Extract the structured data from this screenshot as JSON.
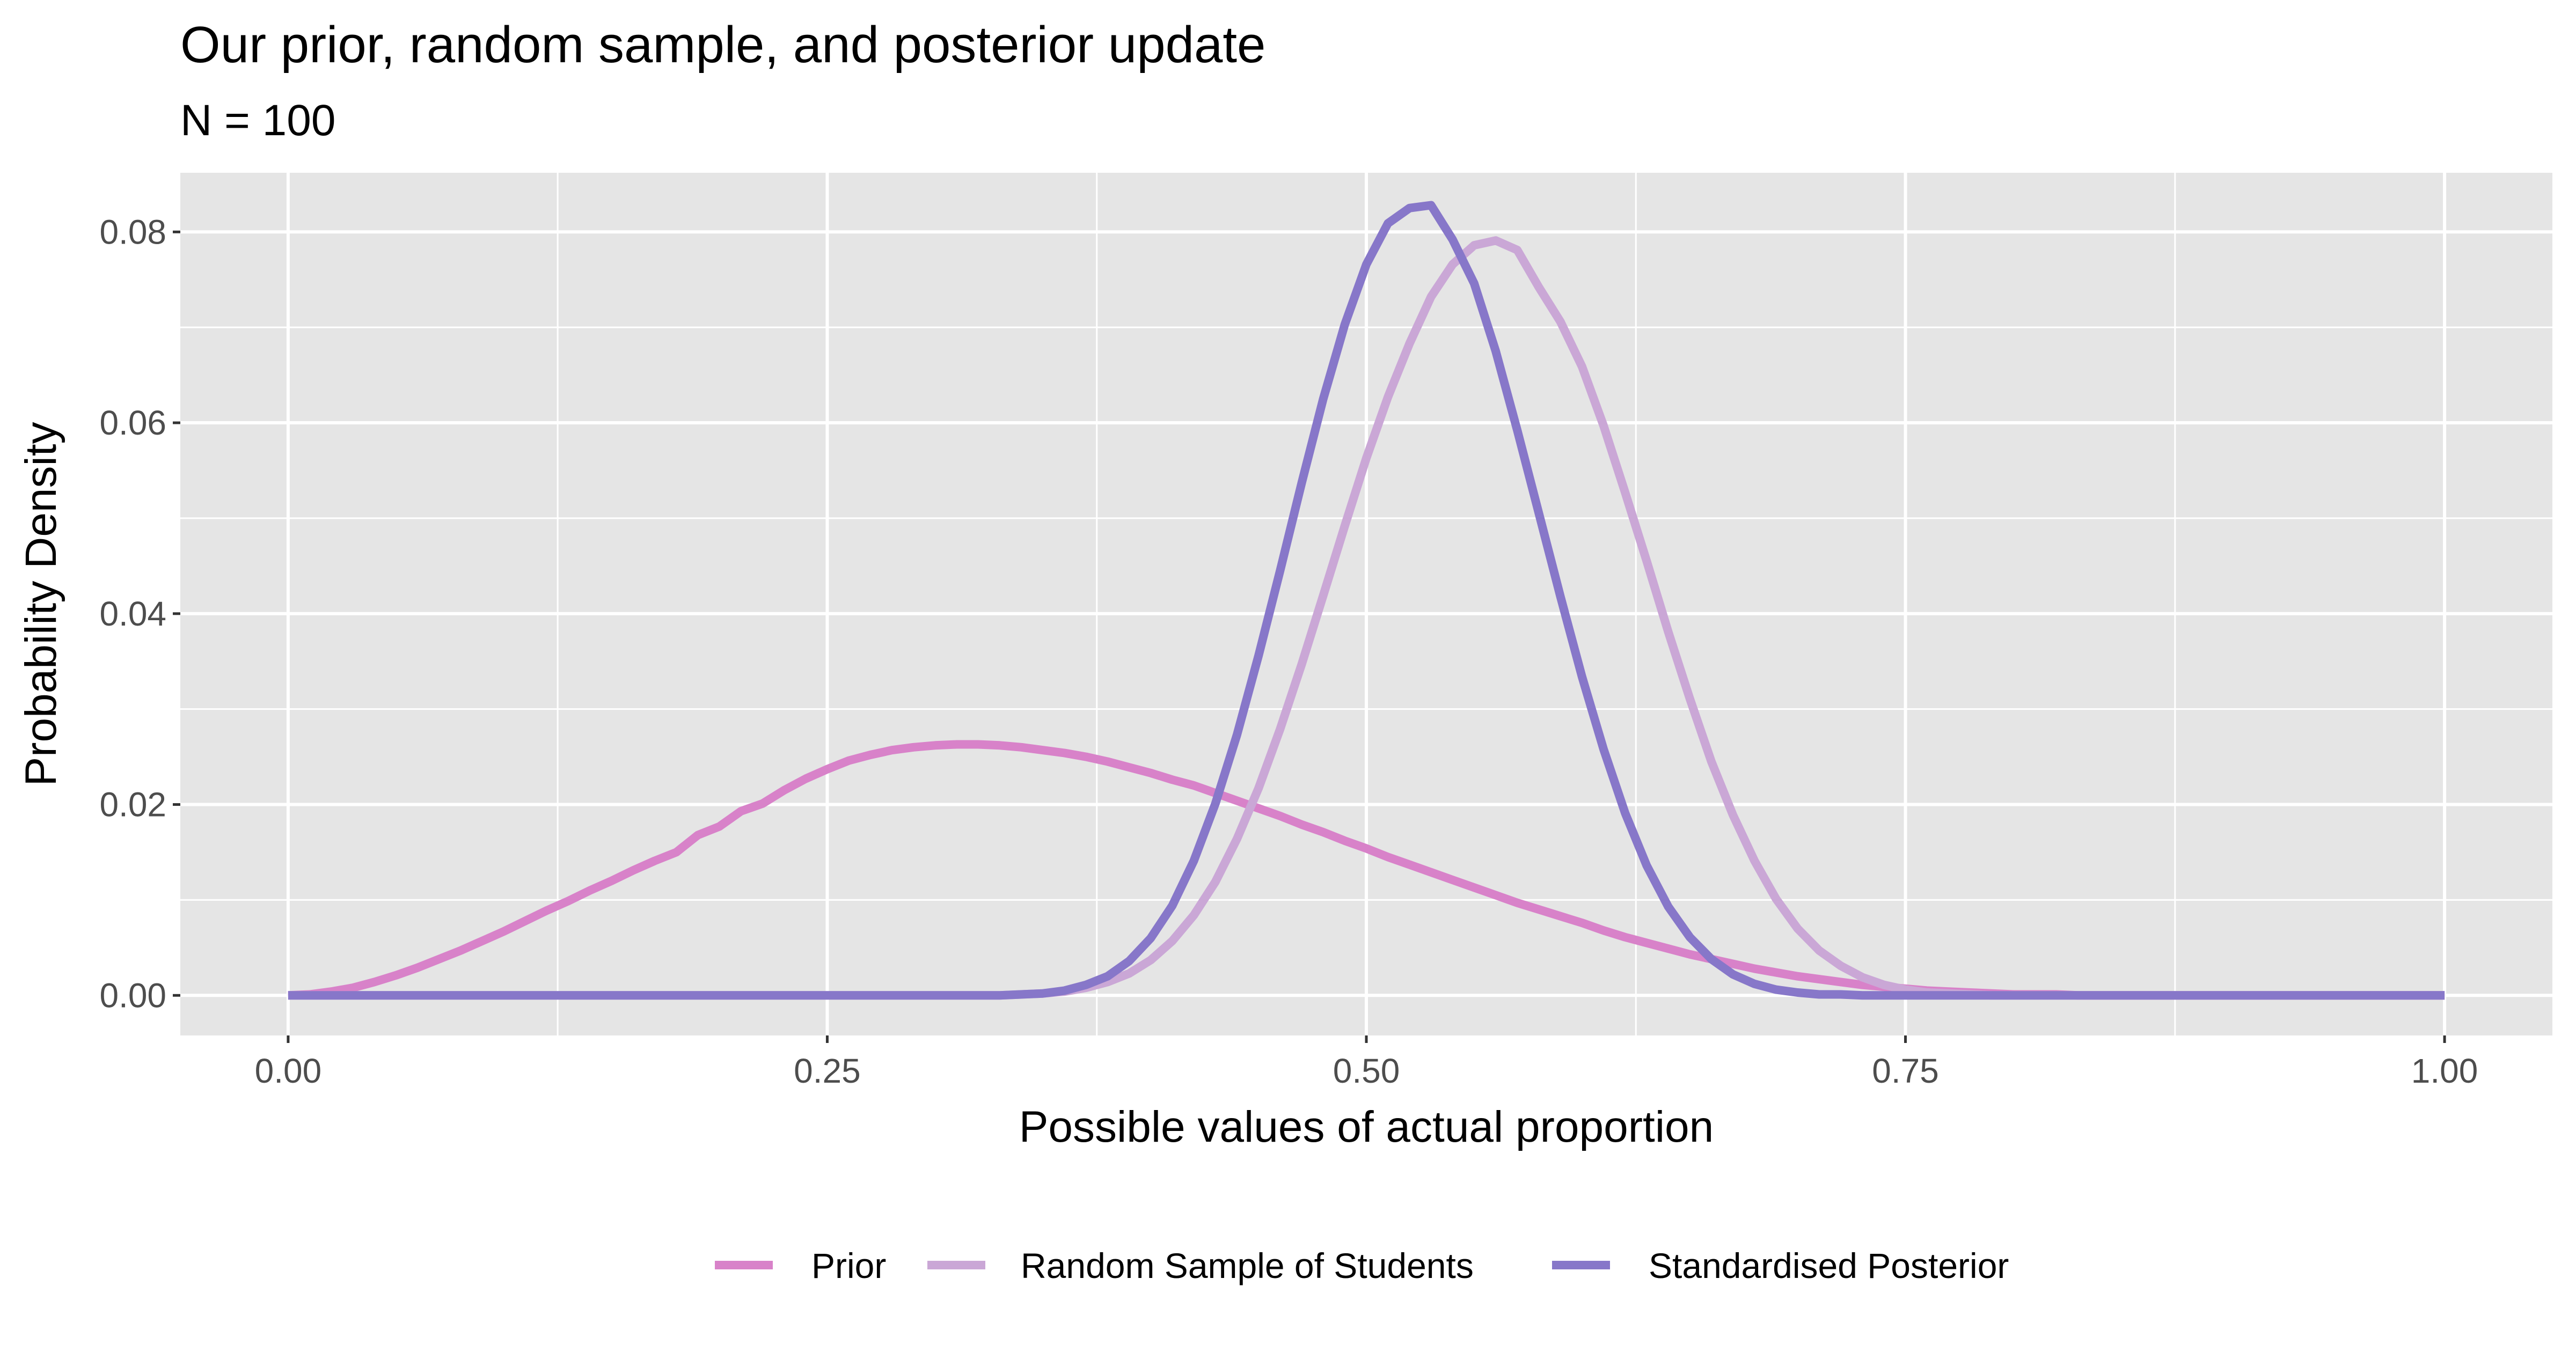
{
  "chart_data": {
    "type": "line",
    "title": "Our prior, random sample, and posterior update",
    "subtitle": "N = 100",
    "xlabel": "Possible values of actual proportion",
    "ylabel": "Probability Density",
    "xlim": [
      -0.05,
      1.05
    ],
    "ylim": [
      -0.0042,
      0.0862
    ],
    "x_ticks": [
      0,
      0.25,
      0.5,
      0.75,
      1
    ],
    "x_tick_labels": [
      "0.00",
      "0.25",
      "0.50",
      "0.75",
      "1.00"
    ],
    "y_ticks": [
      0,
      0.02,
      0.04,
      0.06,
      0.08
    ],
    "y_tick_labels": [
      "0.00",
      "0.02",
      "0.04",
      "0.06",
      "0.08"
    ],
    "x_minor_ticks": [
      0.125,
      0.375,
      0.625,
      0.875
    ],
    "y_minor_ticks": [
      0.01,
      0.03,
      0.05,
      0.07
    ],
    "grid": true,
    "legend_position": "bottom",
    "x": [
      0,
      0.01,
      0.02,
      0.03,
      0.04,
      0.05,
      0.06,
      0.07,
      0.08,
      0.09,
      0.1,
      0.11,
      0.12,
      0.13,
      0.14,
      0.15,
      0.16,
      0.17,
      0.18,
      0.19,
      0.2,
      0.21,
      0.22,
      0.23,
      0.24,
      0.25,
      0.26,
      0.27,
      0.28,
      0.29,
      0.3,
      0.31,
      0.32,
      0.33,
      0.34,
      0.35,
      0.36,
      0.37,
      0.38,
      0.39,
      0.4,
      0.41,
      0.42,
      0.43,
      0.44,
      0.45,
      0.46,
      0.47,
      0.48,
      0.49,
      0.5,
      0.51,
      0.52,
      0.53,
      0.54,
      0.55,
      0.56,
      0.57,
      0.58,
      0.59,
      0.6,
      0.61,
      0.62,
      0.63,
      0.64,
      0.65,
      0.66,
      0.67,
      0.68,
      0.69,
      0.7,
      0.71,
      0.72,
      0.73,
      0.74,
      0.75,
      0.76,
      0.77,
      0.78,
      0.79,
      0.8,
      0.81,
      0.82,
      0.83,
      0.84,
      0.85,
      0.86,
      0.87,
      0.88,
      0.89,
      0.9,
      0.91,
      0.92,
      0.93,
      0.94,
      0.95,
      0.96,
      0.97,
      0.98,
      0.99,
      1
    ],
    "series": [
      {
        "name": "Prior",
        "color": "#d882c9",
        "values": [
          0,
          0.0001,
          0.0004,
          0.0008,
          0.0014,
          0.0021,
          0.0029,
          0.0038,
          0.0047,
          0.0057,
          0.0067,
          0.0078,
          0.0089,
          0.0099,
          0.011,
          0.012,
          0.0131,
          0.0141,
          0.015,
          0.0168,
          0.0177,
          0.0193,
          0.0201,
          0.0215,
          0.0227,
          0.0237,
          0.0246,
          0.0252,
          0.0257,
          0.026,
          0.0262,
          0.0263,
          0.0263,
          0.0262,
          0.026,
          0.0257,
          0.0254,
          0.025,
          0.0245,
          0.0239,
          0.0233,
          0.0226,
          0.022,
          0.0212,
          0.0204,
          0.0196,
          0.0188,
          0.0179,
          0.0171,
          0.0162,
          0.0154,
          0.0145,
          0.0137,
          0.0129,
          0.0121,
          0.0113,
          0.0105,
          0.0097,
          0.009,
          0.0083,
          0.0076,
          0.0068,
          0.0061,
          0.0055,
          0.0049,
          0.0043,
          0.0038,
          0.0033,
          0.0028,
          0.0024,
          0.002,
          0.0017,
          0.0014,
          0.0011,
          0.0009,
          0.0007,
          0.0005,
          0.0004,
          0.0003,
          0.0002,
          0.0001,
          0.0001,
          0.0001,
          0,
          0,
          0,
          0,
          0,
          0,
          0,
          0,
          0,
          0,
          0,
          0,
          0,
          0,
          0,
          0,
          0,
          0
        ]
      },
      {
        "name": "Random Sample of Students",
        "color": "#caa7d6",
        "values": [
          0,
          0,
          0,
          0,
          0,
          0,
          0,
          0,
          0,
          0,
          0,
          0,
          0,
          0,
          0,
          0,
          0,
          0,
          0,
          0,
          0,
          0,
          0,
          0,
          0,
          0,
          0,
          0,
          0,
          0,
          0,
          0,
          0,
          0,
          0.0001,
          0.0002,
          0.0004,
          0.0008,
          0.0014,
          0.0023,
          0.0037,
          0.0057,
          0.0084,
          0.0119,
          0.0164,
          0.0217,
          0.0279,
          0.0347,
          0.0419,
          0.0492,
          0.0563,
          0.0627,
          0.0683,
          0.0732,
          0.0766,
          0.0786,
          0.0791,
          0.0781,
          0.0742,
          0.0706,
          0.0659,
          0.0597,
          0.0527,
          0.0455,
          0.0381,
          0.0311,
          0.0245,
          0.0189,
          0.0141,
          0.0101,
          0.007,
          0.0047,
          0.0031,
          0.0019,
          0.0011,
          0.0006,
          0.0003,
          0.0002,
          0.0001,
          0,
          0,
          0,
          0,
          0,
          0,
          0,
          0,
          0,
          0,
          0,
          0,
          0,
          0,
          0,
          0,
          0,
          0,
          0,
          0,
          0,
          0
        ]
      },
      {
        "name": "Standardised Posterior",
        "color": "#8777c9",
        "values": [
          0,
          0,
          0,
          0,
          0,
          0,
          0,
          0,
          0,
          0,
          0,
          0,
          0,
          0,
          0,
          0,
          0,
          0,
          0,
          0,
          0,
          0,
          0,
          0,
          0,
          0,
          0,
          0,
          0,
          0,
          0,
          0,
          0,
          0,
          0.0001,
          0.0002,
          0.0005,
          0.0011,
          0.002,
          0.0036,
          0.006,
          0.0094,
          0.0141,
          0.0201,
          0.0273,
          0.0356,
          0.0445,
          0.0537,
          0.0625,
          0.0703,
          0.0766,
          0.0809,
          0.0825,
          0.0828,
          0.0792,
          0.0746,
          0.0675,
          0.0592,
          0.0505,
          0.0418,
          0.0334,
          0.0258,
          0.0191,
          0.0136,
          0.0093,
          0.0061,
          0.0038,
          0.0022,
          0.0012,
          0.0006,
          0.0003,
          0.0001,
          0.0001,
          0,
          0,
          0,
          0,
          0,
          0,
          0,
          0,
          0,
          0,
          0,
          0,
          0,
          0,
          0,
          0,
          0,
          0,
          0,
          0,
          0,
          0,
          0,
          0,
          0,
          0,
          0,
          0
        ]
      }
    ]
  },
  "colors": {
    "panel_background": "#e5e5e5",
    "grid": "#ffffff",
    "tick_text": "#4d4d4d",
    "tick_mark": "#333333"
  }
}
